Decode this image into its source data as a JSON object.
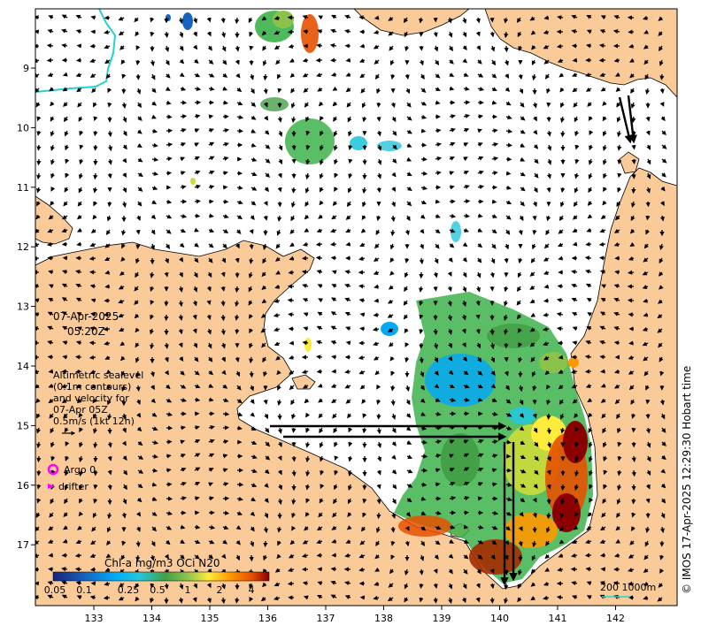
{
  "map": {
    "axis_x": {
      "ticks": [
        "133",
        "134",
        "135",
        "136",
        "137",
        "138",
        "139",
        "140",
        "141",
        "142"
      ]
    },
    "axis_y": {
      "ticks": [
        "9",
        "10",
        "11",
        "12",
        "13",
        "14",
        "15",
        "16",
        "17"
      ]
    }
  },
  "overlay": {
    "date": "07-Apr-2025",
    "time": "05:20Z",
    "altimetry": [
      "Altimetric sealevel",
      "(0.1m contours)",
      "and velocity for",
      "07-Apr 05Z",
      "0.5m/s (1kt 12h)"
    ],
    "argo_label": "Argo 0",
    "drifter_label": "drifter"
  },
  "colorbar": {
    "title": "Chl-a mg/m3 OCi N20",
    "labels": [
      "0.05",
      "0.1",
      "0.25",
      "0.5",
      "1",
      "2",
      "4"
    ]
  },
  "scale": {
    "label": "200  1000m"
  },
  "credit": "© IMOS 17-Apr-2025 12:29:30 Hobart time",
  "colors": {
    "land": "#FACB98",
    "water": "#FFFFFF",
    "bathy": "#22D3D3",
    "argo": "#FF00FF",
    "chl_low": "#1E3A9A",
    "chl_high": "#8B0000"
  }
}
